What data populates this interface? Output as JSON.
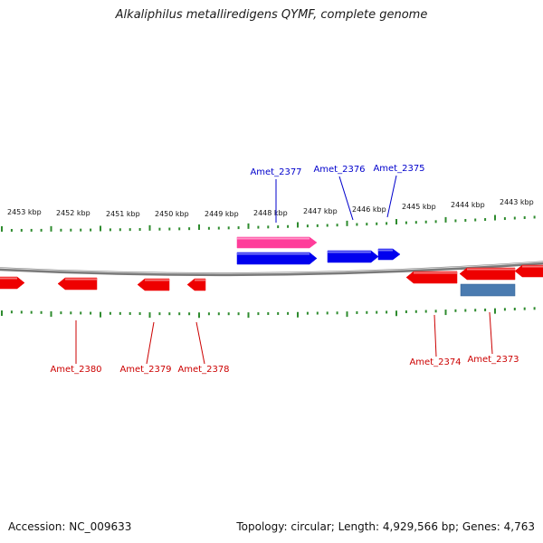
{
  "title": "Alkaliphilus metalliredigens QYMF, complete genome",
  "footer": {
    "accession": "Accession: NC_009633",
    "summary": "Topology: circular; Length: 4,929,566 bp; Genes: 4,763"
  },
  "colors": {
    "backbone": "#7a7a7a",
    "tick": "#2e8b2e",
    "forward_gene": "#0000ee",
    "reverse_gene": "#ee0000",
    "highlight_gene": "#ff3d9a",
    "other_feature": "#4a7bb0",
    "forward_label": "#0000cc",
    "reverse_label": "#cc0000"
  },
  "scale_labels": [
    "2453 kbp",
    "2452 kbp",
    "2451 kbp",
    "2450 kbp",
    "2449 kbp",
    "2448 kbp",
    "2447 kbp",
    "2446 kbp",
    "2445 kbp",
    "2444 kbp",
    "2443 kbp"
  ],
  "gene_labels": {
    "forward": [
      "Amet_2377",
      "Amet_2376",
      "Amet_2375"
    ],
    "reverse": [
      "Amet_2380",
      "Amet_2379",
      "Amet_2378",
      "Amet_2374",
      "Amet_2373"
    ]
  }
}
